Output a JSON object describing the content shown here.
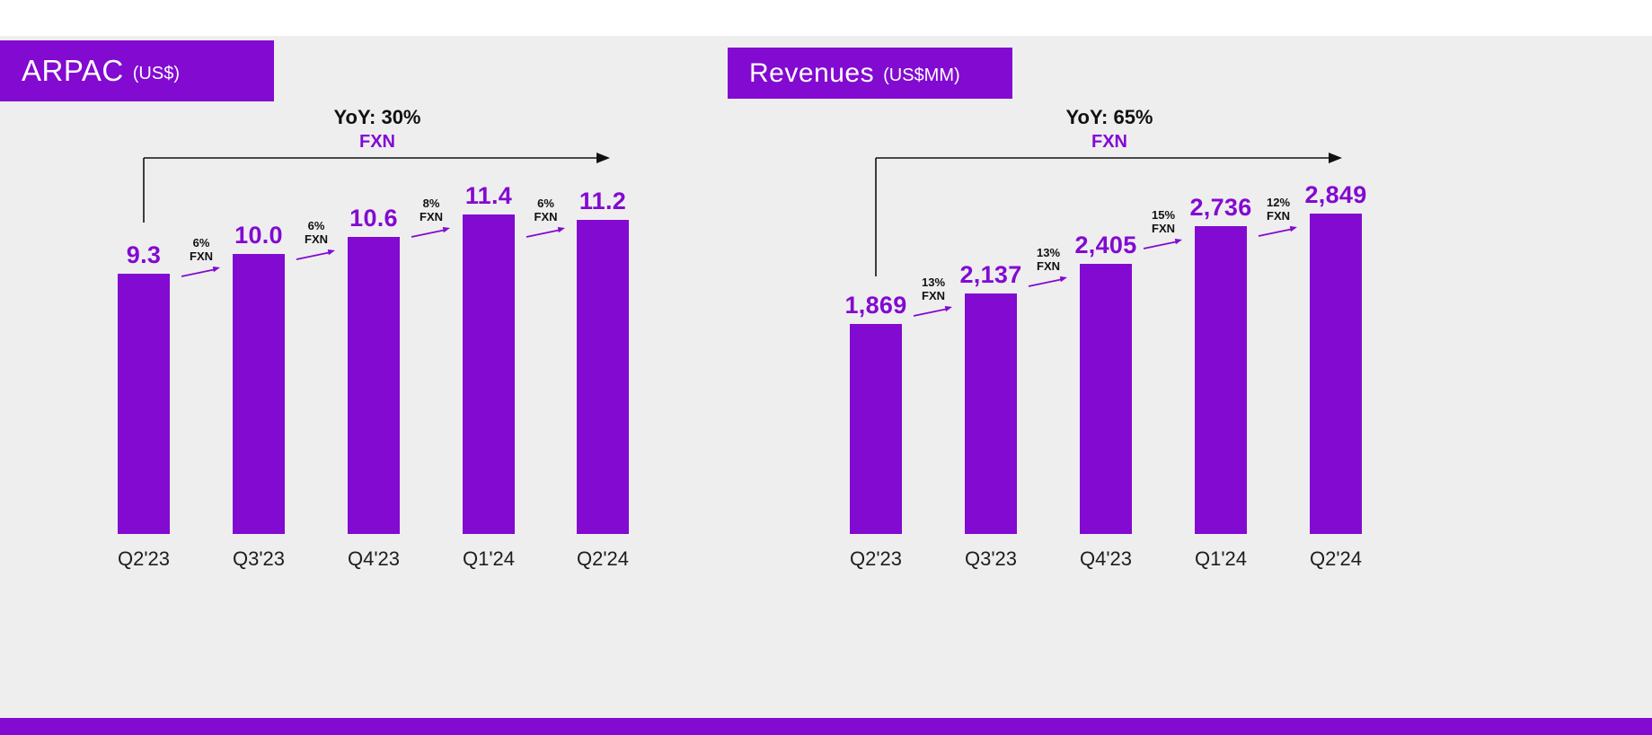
{
  "page": {
    "background_color": "#efeeef",
    "accent_color": "#820ad1",
    "footer_strip_color": "#820ad1"
  },
  "chart_data": [
    {
      "id": "arpac",
      "type": "bar",
      "title": "ARPAC",
      "title_suffix": "(US$)",
      "yoy_label": "YoY: 30%",
      "fxn_label": "FXN",
      "categories": [
        "Q2'23",
        "Q3'23",
        "Q4'23",
        "Q1'24",
        "Q2'24"
      ],
      "values": [
        9.3,
        10.0,
        10.6,
        11.4,
        11.2
      ],
      "value_labels": [
        "9.3",
        "10.0",
        "10.6",
        "11.4",
        "11.2"
      ],
      "growth_annotations": [
        {
          "pct": "6%",
          "label": "FXN"
        },
        {
          "pct": "6%",
          "label": "FXN"
        },
        {
          "pct": "8%",
          "label": "FXN"
        },
        {
          "pct": "6%",
          "label": "FXN"
        }
      ],
      "bar_color": "#820ad1",
      "xlabel": "",
      "ylabel": "",
      "ylim": [
        0,
        11.4
      ],
      "legend": "none",
      "grid": false
    },
    {
      "id": "revenues",
      "type": "bar",
      "title": "Revenues",
      "title_suffix": "(US$MM)",
      "yoy_label": "YoY: 65%",
      "fxn_label": "FXN",
      "categories": [
        "Q2'23",
        "Q3'23",
        "Q4'23",
        "Q1'24",
        "Q2'24"
      ],
      "values": [
        1869,
        2137,
        2405,
        2736,
        2849
      ],
      "value_labels": [
        "1,869",
        "2,137",
        "2,405",
        "2,736",
        "2,849"
      ],
      "growth_annotations": [
        {
          "pct": "13%",
          "label": "FXN"
        },
        {
          "pct": "13%",
          "label": "FXN"
        },
        {
          "pct": "15%",
          "label": "FXN"
        },
        {
          "pct": "12%",
          "label": "FXN"
        }
      ],
      "bar_color": "#820ad1",
      "xlabel": "",
      "ylabel": "",
      "ylim": [
        0,
        2849
      ],
      "legend": "none",
      "grid": false
    }
  ]
}
